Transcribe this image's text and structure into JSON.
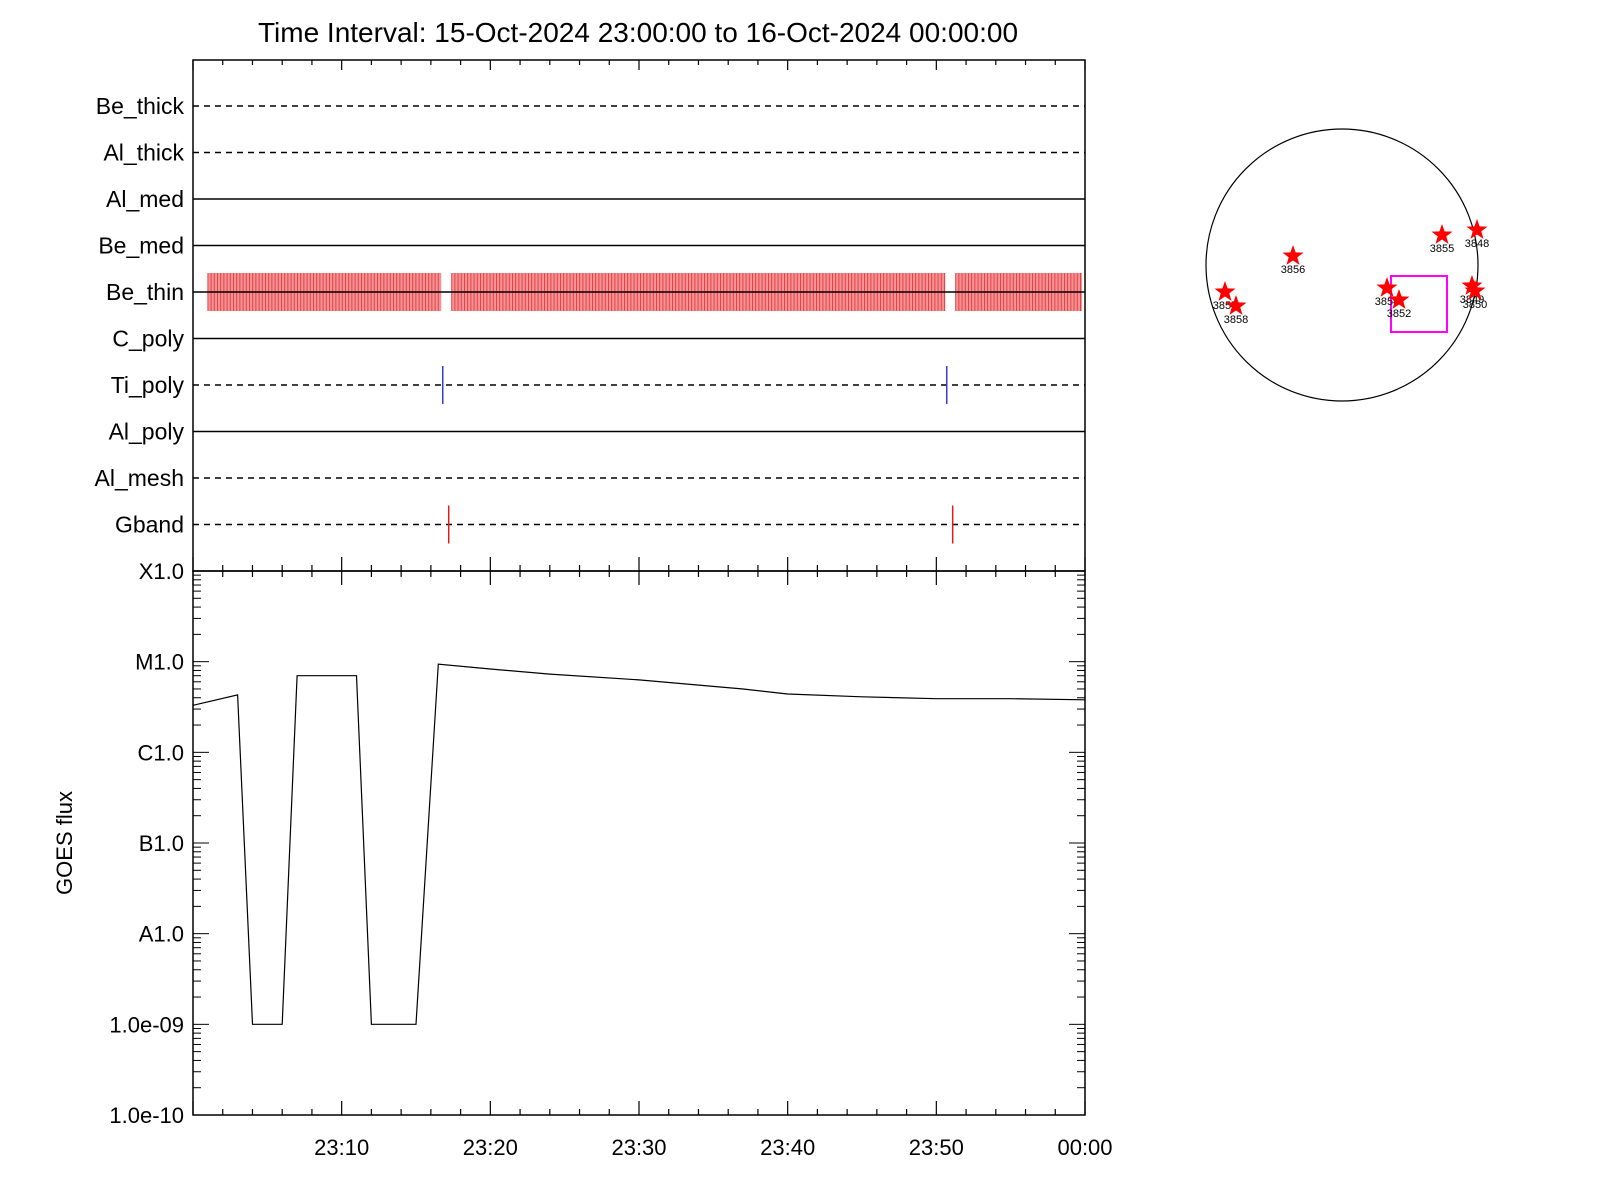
{
  "title": "Time Interval: 15-Oct-2024 23:00:00 to 16-Oct-2024 00:00:00",
  "colors": {
    "axis": "#000000",
    "be_thin": "#e8393c",
    "ti_poly": "#3a3acf",
    "gband": "#e01b1b",
    "goes_line": "#000000",
    "star": "#ff0000",
    "box": "#ff00ff"
  },
  "chart_data": [
    {
      "type": "timeline",
      "x_range": [
        "23:00",
        "00:00"
      ],
      "time_range_min": [
        0,
        60
      ],
      "filters": [
        {
          "name": "Be_thick",
          "style": "dashed",
          "events": []
        },
        {
          "name": "Al_thick",
          "style": "dashed",
          "events": []
        },
        {
          "name": "Al_med",
          "style": "solid",
          "events": []
        },
        {
          "name": "Be_med",
          "style": "solid",
          "events": []
        },
        {
          "name": "Be_thin",
          "style": "solid",
          "coverage_min": [
            [
              1.0,
              16.7
            ],
            [
              17.4,
              50.6
            ],
            [
              51.3,
              59.8
            ]
          ],
          "color": "be_thin"
        },
        {
          "name": "C_poly",
          "style": "solid",
          "events": []
        },
        {
          "name": "Ti_poly",
          "style": "dashed",
          "events_min": [
            16.8,
            50.7
          ],
          "color": "ti_poly"
        },
        {
          "name": "Al_poly",
          "style": "solid",
          "events": []
        },
        {
          "name": "Al_mesh",
          "style": "dashed",
          "events": []
        },
        {
          "name": "Gband",
          "style": "dashed",
          "events_min": [
            17.2,
            51.1
          ],
          "color": "gband"
        }
      ]
    },
    {
      "type": "line",
      "ylabel": "GOES flux",
      "yscale": "log",
      "ylim": [
        1e-10,
        0.0001
      ],
      "y_tick_values": [
        1e-10,
        1e-09,
        1e-08,
        1e-07,
        1e-06,
        1e-05,
        0.0001
      ],
      "y_tick_labels": [
        "1.0e-10",
        "1.0e-09",
        "A1.0",
        "B1.0",
        "C1.0",
        "M1.0",
        "X1.0"
      ],
      "x_tick_values": [
        10,
        20,
        30,
        40,
        50,
        60
      ],
      "x_tick_labels": [
        "23:10",
        "23:20",
        "23:30",
        "23:40",
        "23:50",
        "00:00"
      ],
      "series": [
        {
          "x_min": [
            0,
            3,
            4,
            6,
            7,
            11,
            12,
            15,
            16.5,
            20,
            24,
            30,
            37,
            40,
            45,
            50,
            55,
            60
          ],
          "y": [
            3.3e-06,
            4.3e-06,
            1e-09,
            1e-09,
            7e-06,
            7e-06,
            1e-09,
            1e-09,
            9.4e-06,
            8.3e-06,
            7.3e-06,
            6.3e-06,
            5e-06,
            4.4e-06,
            4.1e-06,
            3.9e-06,
            3.9e-06,
            3.8e-06
          ]
        }
      ]
    }
  ],
  "sun_map": {
    "regions": [
      {
        "label": "3856"
      },
      {
        "label": "3855"
      },
      {
        "label": "3848"
      },
      {
        "label": "3857"
      },
      {
        "label": "3858"
      },
      {
        "label": "3854"
      },
      {
        "label": "3852"
      },
      {
        "label": "3849"
      },
      {
        "label": "3850"
      }
    ]
  }
}
